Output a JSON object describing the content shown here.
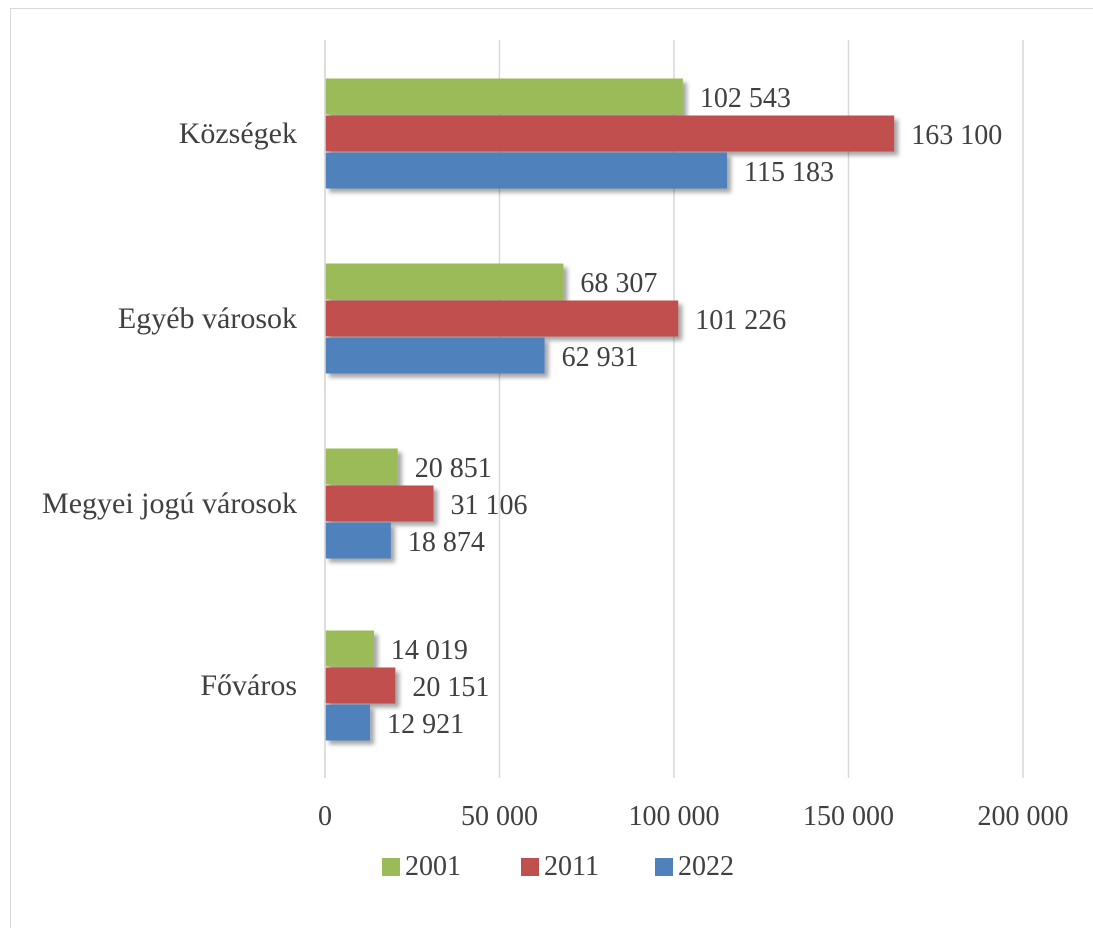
{
  "chart_data": {
    "type": "bar",
    "orientation": "horizontal",
    "categories": [
      "Községek",
      "Egyéb városok",
      "Megyei jogú városok",
      "Főváros"
    ],
    "series": [
      {
        "name": "2001",
        "color": "#9bbb59",
        "values": [
          102543,
          68307,
          20851,
          14019
        ],
        "labels": [
          "102 543",
          "68 307",
          "20 851",
          "14 019"
        ]
      },
      {
        "name": "2011",
        "color": "#c0504d",
        "values": [
          163100,
          101226,
          31106,
          20151
        ],
        "labels": [
          "163 100",
          "101 226",
          "31 106",
          "20 151"
        ]
      },
      {
        "name": "2022",
        "color": "#4f81bd",
        "values": [
          115183,
          62931,
          18874,
          12921
        ],
        "labels": [
          "115 183",
          "62 931",
          "18 874",
          "12 921"
        ]
      }
    ],
    "xlim": [
      0,
      200000
    ],
    "xticks": [
      0,
      50000,
      100000,
      150000,
      200000
    ],
    "xtick_labels": [
      "0",
      "50 000",
      "100 000",
      "150 000",
      "200 000"
    ],
    "grid": "vertical",
    "legend": {
      "position": "bottom"
    },
    "title": "",
    "xlabel": "",
    "ylabel": ""
  }
}
